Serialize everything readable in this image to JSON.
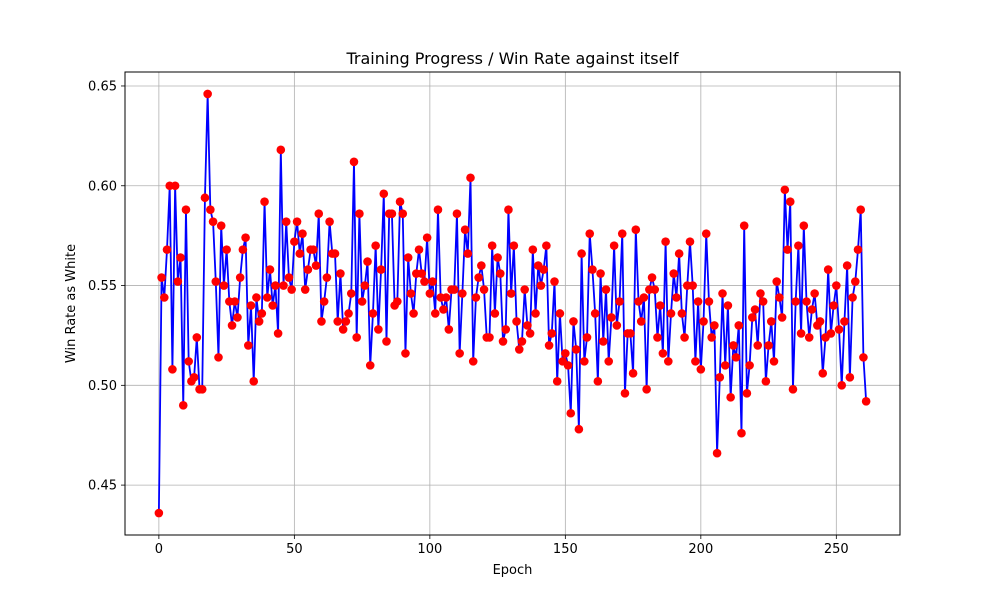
{
  "chart_data": {
    "type": "line",
    "title": "Training Progress / Win Rate against itself",
    "xlabel": "Epoch",
    "ylabel": "Win Rate as White",
    "xlim": [
      -12.5,
      273.5
    ],
    "ylim": [
      0.425,
      0.657
    ],
    "xticks": [
      0,
      50,
      100,
      150,
      200,
      250
    ],
    "yticks": [
      0.45,
      0.5,
      0.55,
      0.6,
      0.65
    ],
    "ytick_labels": [
      "0.45",
      "0.50",
      "0.55",
      "0.60",
      "0.65"
    ],
    "grid": true,
    "line_color": "#0000ff",
    "marker_color": "#ff0000",
    "series": [
      {
        "x_start": 0,
        "x_step": 1,
        "values": [
          0.436,
          0.554,
          0.544,
          0.568,
          0.6,
          0.508,
          0.6,
          0.552,
          0.564,
          0.49,
          0.588,
          0.512,
          0.502,
          0.504,
          0.524,
          0.498,
          0.498,
          0.594,
          0.646,
          0.588,
          0.582,
          0.552,
          0.514,
          0.58,
          0.55,
          0.568,
          0.542,
          0.53,
          0.542,
          0.534,
          0.554,
          0.568,
          0.574,
          0.52,
          0.54,
          0.502,
          0.544,
          0.532,
          0.536,
          0.592,
          0.544,
          0.558,
          0.54,
          0.55,
          0.526,
          0.618,
          0.55,
          0.582,
          0.554,
          0.548,
          0.572,
          0.582,
          0.566,
          0.576,
          0.548,
          0.558,
          0.568,
          0.568,
          0.56,
          0.586,
          0.532,
          0.542,
          0.554,
          0.582,
          0.566,
          0.566,
          0.532,
          0.556,
          0.528,
          0.532,
          0.536,
          0.546,
          0.612,
          0.524,
          0.586,
          0.542,
          0.55,
          0.562,
          0.51,
          0.536,
          0.57,
          0.528,
          0.558,
          0.596,
          0.522,
          0.586,
          0.586,
          0.54,
          0.542,
          0.592,
          0.586,
          0.516,
          0.564,
          0.546,
          0.536,
          0.556,
          0.568,
          0.556,
          0.552,
          0.574,
          0.546,
          0.552,
          0.536,
          0.588,
          0.544,
          0.538,
          0.544,
          0.528,
          0.548,
          0.548,
          0.586,
          0.516,
          0.546,
          0.578,
          0.566,
          0.604,
          0.512,
          0.544,
          0.554,
          0.56,
          0.548,
          0.524,
          0.524,
          0.57,
          0.536,
          0.564,
          0.556,
          0.522,
          0.528,
          0.588,
          0.546,
          0.57,
          0.532,
          0.518,
          0.522,
          0.548,
          0.53,
          0.526,
          0.568,
          0.536,
          0.56,
          0.55,
          0.558,
          0.57,
          0.52,
          0.526,
          0.552,
          0.502,
          0.536,
          0.512,
          0.516,
          0.51,
          0.486,
          0.532,
          0.518,
          0.478,
          0.566,
          0.512,
          0.524,
          0.576,
          0.558,
          0.536,
          0.502,
          0.556,
          0.522,
          0.548,
          0.512,
          0.534,
          0.57,
          0.53,
          0.542,
          0.576,
          0.496,
          0.526,
          0.526,
          0.506,
          0.578,
          0.542,
          0.532,
          0.544,
          0.498,
          0.548,
          0.554,
          0.548,
          0.524,
          0.54,
          0.516,
          0.572,
          0.512,
          0.536,
          0.556,
          0.544,
          0.566,
          0.536,
          0.524,
          0.55,
          0.572,
          0.55,
          0.512,
          0.542,
          0.508,
          0.532,
          0.576,
          0.542,
          0.524,
          0.53,
          0.466,
          0.504,
          0.546,
          0.51,
          0.54,
          0.494,
          0.52,
          0.514,
          0.53,
          0.476,
          0.58,
          0.496,
          0.51,
          0.534,
          0.538,
          0.52,
          0.546,
          0.542,
          0.502,
          0.52,
          0.532,
          0.512,
          0.552,
          0.544,
          0.534,
          0.598,
          0.568,
          0.592,
          0.498,
          0.542,
          0.57,
          0.526,
          0.58,
          0.542,
          0.524,
          0.538,
          0.546,
          0.53,
          0.532,
          0.506,
          0.524,
          0.558,
          0.526,
          0.54,
          0.55,
          0.528,
          0.5,
          0.532,
          0.56,
          0.504,
          0.544,
          0.552,
          0.568,
          0.588,
          0.514,
          0.492
        ]
      }
    ]
  }
}
